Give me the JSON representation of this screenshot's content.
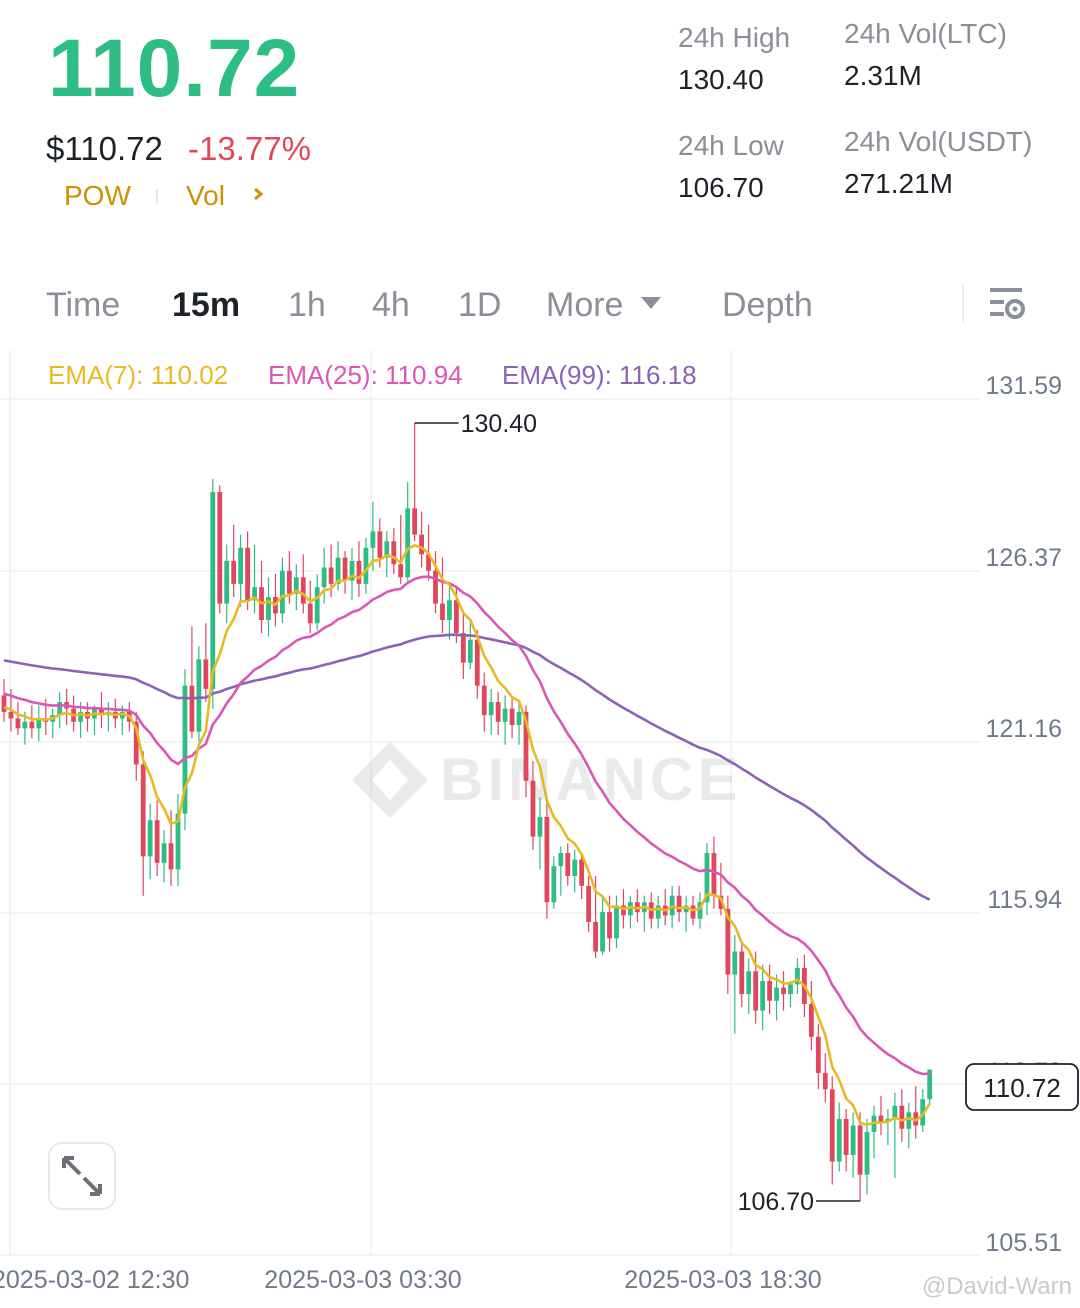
{
  "header": {
    "last_price": "110.72",
    "usd_price": "$110.72",
    "change_pct": "-13.77%",
    "tags": [
      "POW",
      "Vol"
    ],
    "tag_chevron": "chevron-right-icon"
  },
  "stats": [
    {
      "label": "24h High",
      "value": "130.40"
    },
    {
      "label": "24h Vol(LTC)",
      "value": "2.31M"
    },
    {
      "label": "24h Low",
      "value": "106.70"
    },
    {
      "label": "24h Vol(USDT)",
      "value": "271.21M"
    }
  ],
  "tabs": {
    "items": [
      "Time",
      "15m",
      "1h",
      "4h",
      "1D",
      "More",
      "Depth"
    ],
    "active": "15m",
    "settings_icon": "chart-settings-icon"
  },
  "indicators": {
    "ema7": "EMA(7): 110.02",
    "ema25": "EMA(25): 110.94",
    "ema99": "EMA(99): 116.18"
  },
  "watermark": "BINANCE",
  "credit": "@David-Warn",
  "colors": {
    "up": "#2ebd85",
    "down": "#e0475d",
    "ema7": "#e8b923",
    "ema25": "#d957b6",
    "ema99": "#8a63b5",
    "accent": "#c99400"
  },
  "chart_data": {
    "type": "candlestick",
    "y_ticks": [
      "131.59",
      "126.37",
      "121.16",
      "115.94",
      "110.73",
      "105.51"
    ],
    "ylim": [
      105.51,
      131.59
    ],
    "x_ticks": [
      "2025-03-02 12:30",
      "2025-03-03 03:30",
      "2025-03-03 18:30"
    ],
    "current_price_label": "110.72",
    "high_marker": {
      "label": "130.40",
      "value": 130.4
    },
    "low_marker": {
      "label": "106.70",
      "value": 106.7
    },
    "ema_end_values": {
      "ema7": 110.02,
      "ema25": 110.94,
      "ema99": 116.18
    },
    "ohlc": [
      [
        122.1,
        122.6,
        121.3,
        121.6
      ],
      [
        121.6,
        122.3,
        121.0,
        121.4
      ],
      [
        121.4,
        121.9,
        120.9,
        121.1
      ],
      [
        121.1,
        121.6,
        120.6,
        121.3
      ],
      [
        121.3,
        121.8,
        120.8,
        121.1
      ],
      [
        121.1,
        121.8,
        120.7,
        121.4
      ],
      [
        121.4,
        122.0,
        120.9,
        121.3
      ],
      [
        121.3,
        121.7,
        120.8,
        121.5
      ],
      [
        121.5,
        122.2,
        121.1,
        121.9
      ],
      [
        121.9,
        122.3,
        121.2,
        121.7
      ],
      [
        121.7,
        122.1,
        121.0,
        121.3
      ],
      [
        121.3,
        121.9,
        120.8,
        121.6
      ],
      [
        121.6,
        121.9,
        121.0,
        121.4
      ],
      [
        121.4,
        121.8,
        120.9,
        121.7
      ],
      [
        121.7,
        122.2,
        121.1,
        121.5
      ],
      [
        121.5,
        121.9,
        121.0,
        121.6
      ],
      [
        121.6,
        122.0,
        121.1,
        121.4
      ],
      [
        121.4,
        121.8,
        120.9,
        121.6
      ],
      [
        121.6,
        121.9,
        121.0,
        121.3
      ],
      [
        121.3,
        121.6,
        119.5,
        120.0
      ],
      [
        120.0,
        120.4,
        116.0,
        117.2
      ],
      [
        117.2,
        118.8,
        116.5,
        118.3
      ],
      [
        118.3,
        118.9,
        116.6,
        117.0
      ],
      [
        117.0,
        118.0,
        116.4,
        117.6
      ],
      [
        117.6,
        118.6,
        116.3,
        116.8
      ],
      [
        116.8,
        119.1,
        116.3,
        118.5
      ],
      [
        118.5,
        122.9,
        118.0,
        122.4
      ],
      [
        122.4,
        124.2,
        120.8,
        121.0
      ],
      [
        121.0,
        123.6,
        120.7,
        123.2
      ],
      [
        123.2,
        124.3,
        121.9,
        122.3
      ],
      [
        122.3,
        128.7,
        121.7,
        128.3
      ],
      [
        128.3,
        128.5,
        124.6,
        124.9
      ],
      [
        124.9,
        126.7,
        124.3,
        126.2
      ],
      [
        126.2,
        127.3,
        125.1,
        125.5
      ],
      [
        125.5,
        127.0,
        124.8,
        126.6
      ],
      [
        126.6,
        127.1,
        124.7,
        125.0
      ],
      [
        125.0,
        126.7,
        124.6,
        125.4
      ],
      [
        125.4,
        126.2,
        124.0,
        124.4
      ],
      [
        124.4,
        125.7,
        123.9,
        125.1
      ],
      [
        125.1,
        125.8,
        124.2,
        124.6
      ],
      [
        124.6,
        126.3,
        124.3,
        125.9
      ],
      [
        125.9,
        126.5,
        124.9,
        125.2
      ],
      [
        125.2,
        126.1,
        124.7,
        125.7
      ],
      [
        125.7,
        126.4,
        124.6,
        124.9
      ],
      [
        124.9,
        125.6,
        124.0,
        124.3
      ],
      [
        124.3,
        125.8,
        124.1,
        125.4
      ],
      [
        125.4,
        126.6,
        124.9,
        126.0
      ],
      [
        126.0,
        126.7,
        125.1,
        125.5
      ],
      [
        125.5,
        126.8,
        125.3,
        126.3
      ],
      [
        126.3,
        126.5,
        125.2,
        125.6
      ],
      [
        125.6,
        126.6,
        125.0,
        126.2
      ],
      [
        126.2,
        126.8,
        125.1,
        125.5
      ],
      [
        125.5,
        126.9,
        125.2,
        126.6
      ],
      [
        126.6,
        128.0,
        125.9,
        127.1
      ],
      [
        127.1,
        127.5,
        126.0,
        126.3
      ],
      [
        126.3,
        127.1,
        125.7,
        126.8
      ],
      [
        126.8,
        127.2,
        125.8,
        126.1
      ],
      [
        126.1,
        127.6,
        125.5,
        125.7
      ],
      [
        125.7,
        128.6,
        125.6,
        127.8
      ],
      [
        127.8,
        130.4,
        126.8,
        127.0
      ],
      [
        127.0,
        127.7,
        126.0,
        126.4
      ],
      [
        126.4,
        127.3,
        125.6,
        125.9
      ],
      [
        125.9,
        126.5,
        124.6,
        124.9
      ],
      [
        124.9,
        126.3,
        124.0,
        124.4
      ],
      [
        124.4,
        125.5,
        123.8,
        125.0
      ],
      [
        125.0,
        125.4,
        123.7,
        124.0
      ],
      [
        124.0,
        124.6,
        122.6,
        123.1
      ],
      [
        123.1,
        124.4,
        122.9,
        123.8
      ],
      [
        123.8,
        124.1,
        122.0,
        122.4
      ],
      [
        122.4,
        122.8,
        121.0,
        121.5
      ],
      [
        121.5,
        122.3,
        120.9,
        121.9
      ],
      [
        121.9,
        122.2,
        120.9,
        121.3
      ],
      [
        121.3,
        122.1,
        120.6,
        121.7
      ],
      [
        121.7,
        122.0,
        120.8,
        121.2
      ],
      [
        121.2,
        121.9,
        120.6,
        121.6
      ],
      [
        121.6,
        121.8,
        119.0,
        119.5
      ],
      [
        119.5,
        120.1,
        117.4,
        117.8
      ],
      [
        117.8,
        119.0,
        116.8,
        118.4
      ],
      [
        118.4,
        118.9,
        115.3,
        115.8
      ],
      [
        115.8,
        117.2,
        115.6,
        116.9
      ],
      [
        116.9,
        117.5,
        116.0,
        117.3
      ],
      [
        117.3,
        117.6,
        116.3,
        116.6
      ],
      [
        116.6,
        117.4,
        116.1,
        117.1
      ],
      [
        117.1,
        117.3,
        115.9,
        116.3
      ],
      [
        116.3,
        116.6,
        114.9,
        115.2
      ],
      [
        115.2,
        116.6,
        114.1,
        114.3
      ],
      [
        114.3,
        116.0,
        114.2,
        115.5
      ],
      [
        115.5,
        116.0,
        114.3,
        114.7
      ],
      [
        114.7,
        116.0,
        114.4,
        115.7
      ],
      [
        115.7,
        116.2,
        115.0,
        115.4
      ],
      [
        115.4,
        116.0,
        115.0,
        115.8
      ],
      [
        115.8,
        116.2,
        115.2,
        115.5
      ],
      [
        115.5,
        116.0,
        114.9,
        115.8
      ],
      [
        115.8,
        116.1,
        115.0,
        115.3
      ],
      [
        115.3,
        116.0,
        115.0,
        115.7
      ],
      [
        115.7,
        116.2,
        115.1,
        115.4
      ],
      [
        115.4,
        116.3,
        115.0,
        116.0
      ],
      [
        116.0,
        116.3,
        115.2,
        115.5
      ],
      [
        115.5,
        116.0,
        114.9,
        115.7
      ],
      [
        115.7,
        116.0,
        115.1,
        115.3
      ],
      [
        115.3,
        116.1,
        115.0,
        115.8
      ],
      [
        115.8,
        117.6,
        115.4,
        117.3
      ],
      [
        117.3,
        117.8,
        115.6,
        116.0
      ],
      [
        116.0,
        117.0,
        115.4,
        115.6
      ],
      [
        115.6,
        116.0,
        113.0,
        113.6
      ],
      [
        113.6,
        114.8,
        111.8,
        114.3
      ],
      [
        114.3,
        114.6,
        112.6,
        113.0
      ],
      [
        113.0,
        114.1,
        112.4,
        113.7
      ],
      [
        113.7,
        114.3,
        112.1,
        112.5
      ],
      [
        112.5,
        113.9,
        111.9,
        113.4
      ],
      [
        113.4,
        113.9,
        112.4,
        112.8
      ],
      [
        112.8,
        113.6,
        112.2,
        113.2
      ],
      [
        113.2,
        113.7,
        112.5,
        113.0
      ],
      [
        113.0,
        113.4,
        112.6,
        113.3
      ],
      [
        113.3,
        114.1,
        113.0,
        113.8
      ],
      [
        113.8,
        114.2,
        112.3,
        112.7
      ],
      [
        112.7,
        113.4,
        111.3,
        111.7
      ],
      [
        111.7,
        112.1,
        110.1,
        110.6
      ],
      [
        110.6,
        111.2,
        109.7,
        110.1
      ],
      [
        110.1,
        110.5,
        107.2,
        107.9
      ],
      [
        107.9,
        109.7,
        107.6,
        109.2
      ],
      [
        109.2,
        109.5,
        107.6,
        108.1
      ],
      [
        108.1,
        109.4,
        107.4,
        109.0
      ],
      [
        109.0,
        109.4,
        106.7,
        107.5
      ],
      [
        107.5,
        109.2,
        106.9,
        108.8
      ],
      [
        108.8,
        109.6,
        108.0,
        109.3
      ],
      [
        109.3,
        109.9,
        108.7,
        109.1
      ],
      [
        109.1,
        109.5,
        108.4,
        109.2
      ],
      [
        109.2,
        110.0,
        107.4,
        109.6
      ],
      [
        109.6,
        110.1,
        108.5,
        108.9
      ],
      [
        108.9,
        109.7,
        108.3,
        109.4
      ],
      [
        109.4,
        110.2,
        108.6,
        109.0
      ],
      [
        109.0,
        110.1,
        108.8,
        109.8
      ],
      [
        109.8,
        110.7,
        109.6,
        110.7
      ]
    ]
  }
}
